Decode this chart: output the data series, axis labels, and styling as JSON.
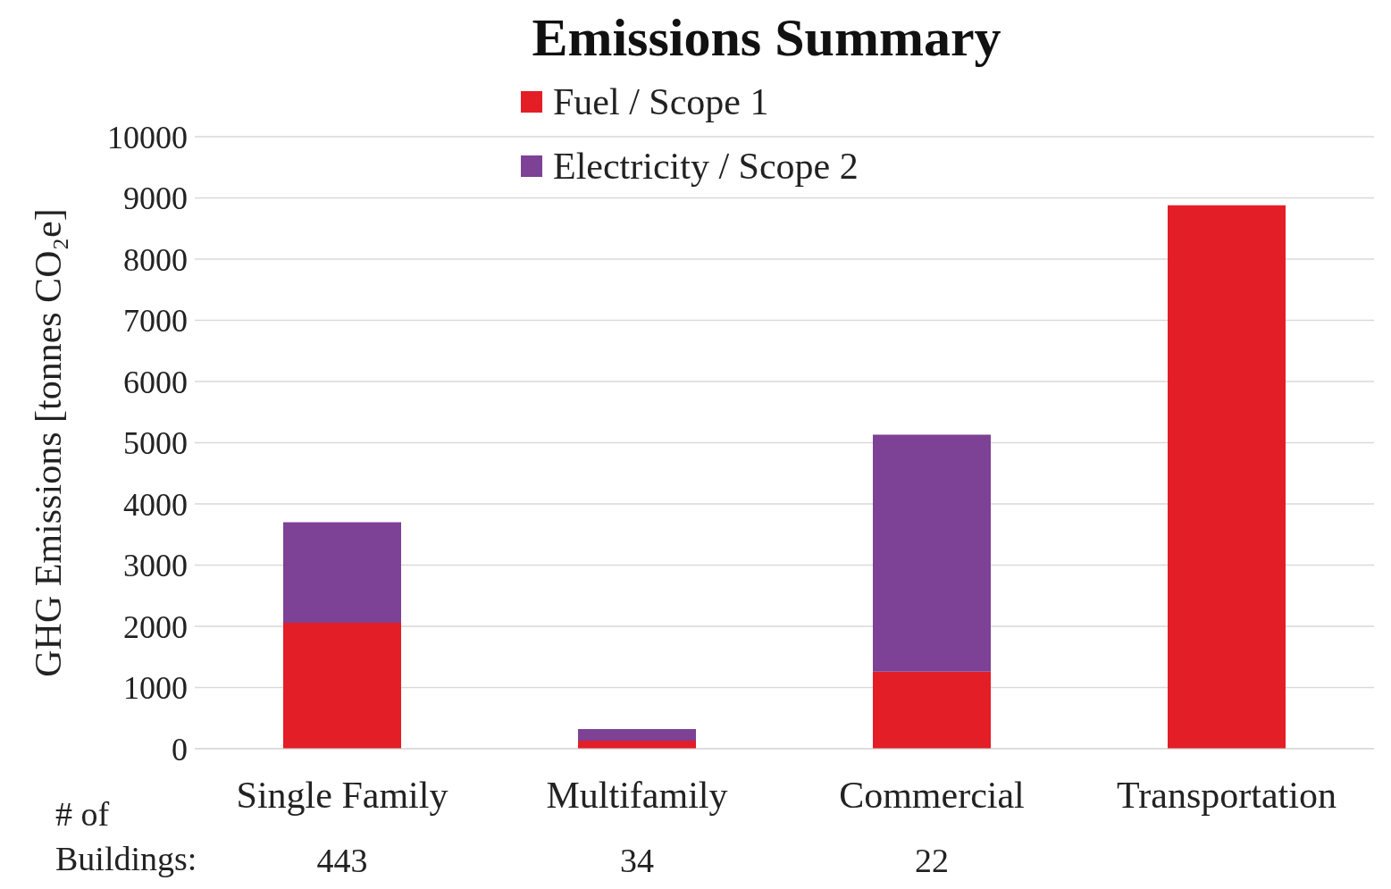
{
  "chart_data": {
    "type": "bar",
    "title": "Emissions Summary",
    "ylabel": "GHG Emissions [tonnes CO₂e]",
    "categories": [
      "Single Family",
      "Multifamily",
      "Commercial",
      "Transportation"
    ],
    "series": [
      {
        "name": "Fuel / Scope 1",
        "color": "#e31e26",
        "values": [
          2060,
          130,
          1260,
          8880
        ]
      },
      {
        "name": "Electricity / Scope 2",
        "color": "#7d4196",
        "values": [
          1640,
          190,
          3870,
          null
        ]
      }
    ],
    "stacked": true,
    "ylim": [
      0,
      10000
    ],
    "yticks": [
      0,
      1000,
      2000,
      3000,
      4000,
      5000,
      6000,
      7000,
      8000,
      9000,
      10000
    ],
    "grid": "y",
    "legend": "top",
    "annotations": [
      "# of Buildings:",
      "443",
      "34",
      "22"
    ]
  }
}
